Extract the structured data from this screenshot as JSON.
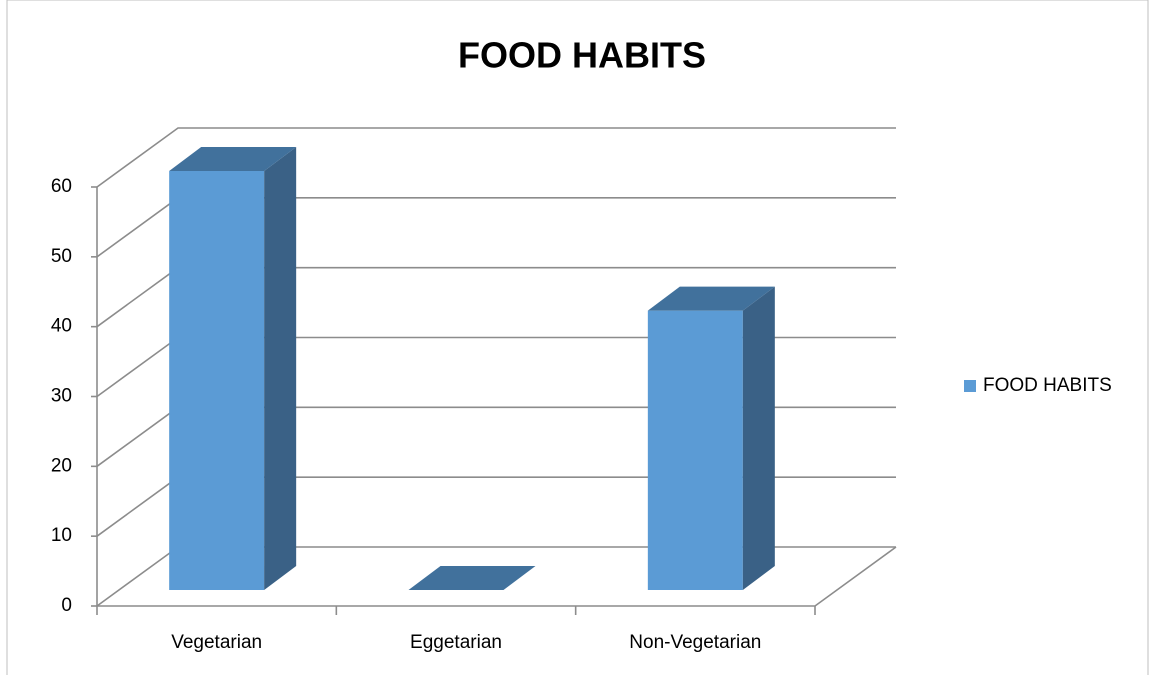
{
  "chart_data": {
    "type": "bar3d",
    "title": "FOOD HABITS",
    "categories": [
      "Vegetarian",
      "Eggetarian",
      "Non-Vegetarian"
    ],
    "series": [
      {
        "name": "FOOD HABITS",
        "color": "#5b9bd5",
        "values": [
          60,
          0,
          40
        ]
      }
    ],
    "ylim": [
      0,
      60
    ],
    "yticks": [
      0,
      10,
      20,
      30,
      40,
      50,
      60
    ],
    "grid": true,
    "legend": "right"
  }
}
